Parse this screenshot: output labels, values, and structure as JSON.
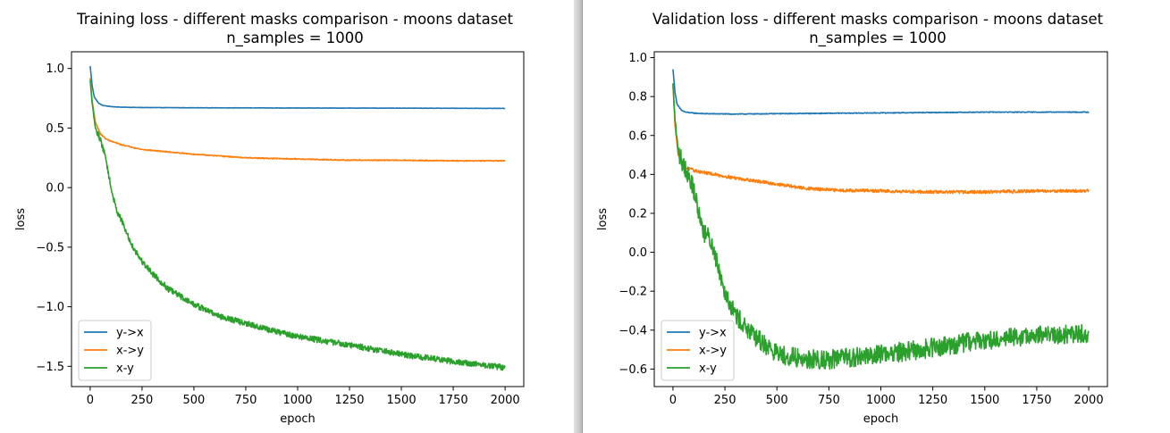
{
  "colors": {
    "y_to_x": "#1f77b4",
    "x_to_y": "#ff7f0e",
    "x_y": "#2ca02c"
  },
  "chart_data": [
    {
      "type": "line",
      "title": "Training loss - different masks comparison - moons dataset",
      "subtitle": "n_samples = 1000",
      "xlabel": "epoch",
      "ylabel": "loss",
      "xlim": [
        -90,
        2090
      ],
      "ylim": [
        -1.67,
        1.14
      ],
      "xticks": [
        0,
        250,
        500,
        750,
        1000,
        1250,
        1500,
        1750,
        2000
      ],
      "xtick_labels": [
        "0",
        "250",
        "500",
        "750",
        "1000",
        "1250",
        "1500",
        "1750",
        "2000"
      ],
      "yticks": [
        1.0,
        0.5,
        0.0,
        -0.5,
        -1.0,
        -1.5
      ],
      "ytick_labels": [
        "1.0",
        "0.5",
        "0.0",
        "−0.5",
        "−1.0",
        "−1.5"
      ],
      "legend": "lower-left",
      "grid": false,
      "series": [
        {
          "name": "y->x",
          "color": "#1f77b4",
          "noise": 0.0015,
          "x": [
            0,
            10,
            20,
            40,
            60,
            100,
            150,
            250,
            500,
            1000,
            1500,
            2000
          ],
          "y": [
            1.02,
            0.85,
            0.76,
            0.71,
            0.69,
            0.68,
            0.675,
            0.672,
            0.67,
            0.668,
            0.667,
            0.665
          ]
        },
        {
          "name": "x->y",
          "color": "#ff7f0e",
          "noise": 0.004,
          "x": [
            0,
            10,
            25,
            50,
            75,
            100,
            150,
            250,
            500,
            750,
            1000,
            1250,
            1500,
            1750,
            2000
          ],
          "y": [
            0.92,
            0.72,
            0.55,
            0.45,
            0.41,
            0.39,
            0.36,
            0.32,
            0.28,
            0.25,
            0.24,
            0.23,
            0.23,
            0.225,
            0.225
          ]
        },
        {
          "name": "x-y",
          "color": "#2ca02c",
          "noise": 0.025,
          "x": [
            0,
            10,
            25,
            50,
            75,
            100,
            125,
            150,
            175,
            200,
            250,
            300,
            375,
            500,
            625,
            750,
            875,
            1000,
            1250,
            1500,
            1750,
            2000
          ],
          "y": [
            0.9,
            0.7,
            0.5,
            0.4,
            0.25,
            0.0,
            -0.18,
            -0.27,
            -0.38,
            -0.48,
            -0.62,
            -0.72,
            -0.85,
            -0.98,
            -1.08,
            -1.14,
            -1.2,
            -1.25,
            -1.32,
            -1.4,
            -1.46,
            -1.51
          ]
        }
      ]
    },
    {
      "type": "line",
      "title": "Validation loss - different masks comparison - moons dataset",
      "subtitle": "n_samples = 1000",
      "xlabel": "epoch",
      "ylabel": "loss",
      "xlim": [
        -90,
        2090
      ],
      "ylim": [
        -0.69,
        1.03
      ],
      "xticks": [
        0,
        250,
        500,
        750,
        1000,
        1250,
        1500,
        1750,
        2000
      ],
      "xtick_labels": [
        "0",
        "250",
        "500",
        "750",
        "1000",
        "1250",
        "1500",
        "1750",
        "2000"
      ],
      "yticks": [
        1.0,
        0.8,
        0.6,
        0.4,
        0.2,
        0.0,
        -0.2,
        -0.4,
        -0.6
      ],
      "ytick_labels": [
        "1.0",
        "0.8",
        "0.6",
        "0.4",
        "0.2",
        "0.0",
        "−0.2",
        "−0.4",
        "−0.6"
      ],
      "legend": "lower-left",
      "grid": false,
      "series": [
        {
          "name": "y->x",
          "color": "#1f77b4",
          "noise": 0.002,
          "x": [
            0,
            10,
            20,
            40,
            60,
            100,
            150,
            300,
            500,
            750,
            1000,
            1250,
            1500,
            1750,
            2000
          ],
          "y": [
            0.94,
            0.82,
            0.76,
            0.73,
            0.72,
            0.715,
            0.712,
            0.71,
            0.712,
            0.714,
            0.716,
            0.718,
            0.72,
            0.72,
            0.72
          ]
        },
        {
          "name": "x->y",
          "color": "#ff7f0e",
          "noise": 0.008,
          "x": [
            0,
            10,
            25,
            50,
            100,
            150,
            250,
            375,
            500,
            625,
            750,
            1000,
            1250,
            1500,
            1750,
            2000
          ],
          "y": [
            0.86,
            0.65,
            0.5,
            0.44,
            0.42,
            0.41,
            0.39,
            0.37,
            0.35,
            0.33,
            0.32,
            0.315,
            0.31,
            0.31,
            0.315,
            0.315
          ]
        },
        {
          "name": "x-y",
          "color": "#2ca02c",
          "noise": 0.05,
          "x": [
            0,
            10,
            25,
            50,
            75,
            100,
            125,
            150,
            175,
            200,
            250,
            300,
            375,
            450,
            500,
            625,
            750,
            875,
            1000,
            1125,
            1250,
            1375,
            1500,
            1625,
            1750,
            1875,
            2000
          ],
          "y": [
            0.86,
            0.68,
            0.52,
            0.45,
            0.4,
            0.32,
            0.2,
            0.1,
            0.07,
            0.0,
            -0.2,
            -0.32,
            -0.42,
            -0.48,
            -0.52,
            -0.55,
            -0.55,
            -0.54,
            -0.52,
            -0.51,
            -0.49,
            -0.47,
            -0.45,
            -0.44,
            -0.43,
            -0.42,
            -0.42
          ]
        }
      ]
    }
  ]
}
